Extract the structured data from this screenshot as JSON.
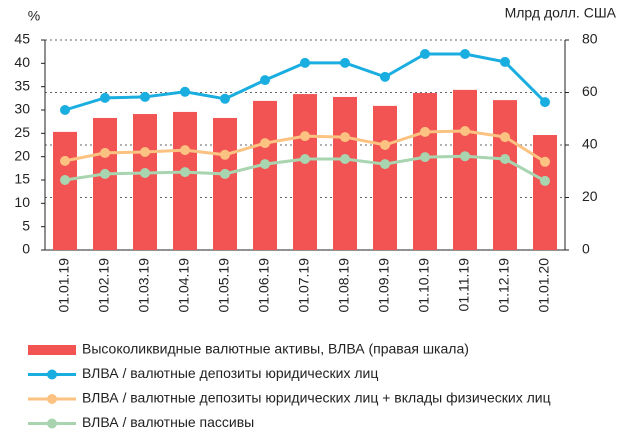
{
  "chart_data": {
    "type": "bar",
    "y_label": "%",
    "y2_label": "Млрд долл. США",
    "categories": [
      "01.01.19",
      "01.02.19",
      "01.03.19",
      "01.04.19",
      "01.05.19",
      "01.06.19",
      "01.07.19",
      "01.08.19",
      "01.09.19",
      "01.10.19",
      "01.11.19",
      "01.12.19",
      "01.01.20"
    ],
    "series": [
      {
        "name": "Высоколиквидные валютные активы, ВЛВА (правая шкала)",
        "type": "bar",
        "axis": "y2",
        "color": "#f25454",
        "values": [
          45,
          50.3,
          51.8,
          52.6,
          50.3,
          56.8,
          59.4,
          58.3,
          54.9,
          59.8,
          61,
          57.1,
          43.8
        ]
      },
      {
        "name": "ВЛВА / валютные депозиты юридических лиц",
        "type": "line",
        "color": "#1aaee0",
        "values": [
          30,
          32.6,
          32.8,
          33.9,
          32.4,
          36.4,
          40.1,
          40.1,
          37.1,
          42,
          42,
          40.3,
          31.7
        ]
      },
      {
        "name": "ВЛВА / валютные депозиты юридических лиц + вклады физических лиц",
        "type": "line",
        "color": "#fcc281",
        "values": [
          19.1,
          20.8,
          21,
          21.4,
          20.4,
          22.9,
          24.4,
          24.2,
          22.5,
          25.3,
          25.5,
          24.2,
          18.9
        ]
      },
      {
        "name": "ВЛВА / валютные пассивы",
        "type": "line",
        "color": "#a8d5b0",
        "values": [
          15,
          16.3,
          16.5,
          16.7,
          16.3,
          18.4,
          19.5,
          19.5,
          18.4,
          19.9,
          20.1,
          19.5,
          14.8
        ]
      }
    ],
    "ylim": [
      0,
      45
    ],
    "yticks": [
      0,
      5,
      10,
      15,
      20,
      25,
      30,
      35,
      40,
      45
    ],
    "y2lim": [
      0,
      80
    ],
    "y2ticks": [
      0,
      20,
      40,
      60,
      80
    ],
    "grid": true
  }
}
